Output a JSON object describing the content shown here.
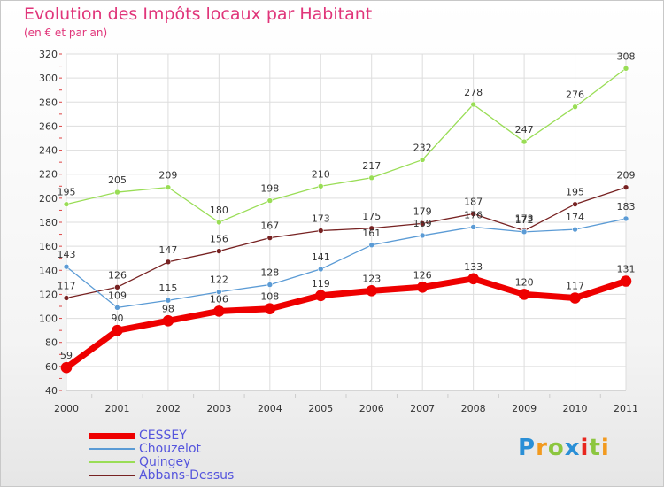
{
  "chart_data": {
    "type": "line",
    "title": "Evolution des Impôts locaux par Habitant",
    "subtitle": "(en € et par an)",
    "x": [
      "2000",
      "2001",
      "2002",
      "2003",
      "2004",
      "2005",
      "2006",
      "2007",
      "2008",
      "2009",
      "2010",
      "2011"
    ],
    "ylim": [
      40,
      320
    ],
    "yticks": [
      40,
      60,
      80,
      100,
      120,
      140,
      160,
      180,
      200,
      220,
      240,
      260,
      280,
      300,
      320
    ],
    "grid": true,
    "legend_position": "bottom-left",
    "series": [
      {
        "name": "CESSEY",
        "color": "#ee0000",
        "values": [
          59,
          90,
          98,
          106,
          108,
          119,
          123,
          126,
          133,
          120,
          117,
          131
        ]
      },
      {
        "name": "Chouzelot",
        "color": "#5b9bd5",
        "values": [
          143,
          109,
          115,
          122,
          128,
          141,
          161,
          169,
          176,
          172,
          174,
          183
        ]
      },
      {
        "name": "Quingey",
        "color": "#99dd55",
        "values": [
          195,
          205,
          209,
          180,
          198,
          210,
          217,
          232,
          278,
          247,
          276,
          308
        ]
      },
      {
        "name": "Abbans-Dessus",
        "color": "#772222",
        "values": [
          117,
          126,
          147,
          156,
          167,
          173,
          175,
          179,
          187,
          173,
          195,
          209
        ]
      }
    ]
  },
  "logo": {
    "text": "Proxiti",
    "letters": [
      "P",
      "r",
      "o",
      "x",
      "i",
      "t",
      "i"
    ],
    "colors": [
      "#2a8fd6",
      "#f29a1f",
      "#8cc63f",
      "#2a8fd6",
      "#e8261e",
      "#8cc63f",
      "#f29a1f"
    ]
  }
}
